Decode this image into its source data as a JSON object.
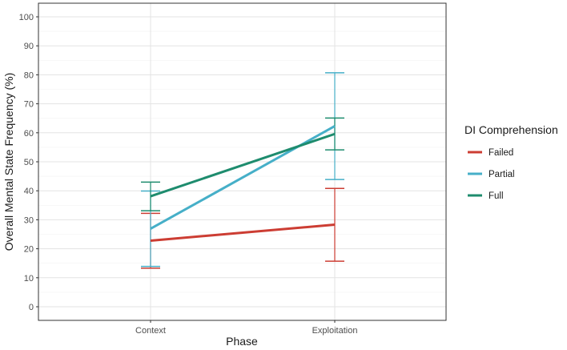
{
  "chart_data": {
    "type": "line",
    "title": "",
    "xlabel": "Phase",
    "ylabel": "Overall Mental State Frequency (%)",
    "categories": [
      "Context",
      "Exploitation"
    ],
    "ylim": [
      0,
      100
    ],
    "yticks": [
      0,
      10,
      20,
      30,
      40,
      50,
      60,
      70,
      80,
      90,
      100
    ],
    "grid": true,
    "legend": {
      "title": "DI Comprehension",
      "placement": "right"
    },
    "series": [
      {
        "name": "Failed",
        "color": "#cc3d33",
        "values": [
          22.8,
          28.3
        ],
        "err_low": [
          13.3,
          15.7
        ],
        "err_high": [
          32.2,
          40.8
        ]
      },
      {
        "name": "Partial",
        "color": "#46afc8",
        "values": [
          26.9,
          62.3
        ],
        "err_low": [
          13.9,
          43.9
        ],
        "err_high": [
          39.9,
          80.7
        ]
      },
      {
        "name": "Full",
        "color": "#1e8c6e",
        "values": [
          38.1,
          59.6
        ],
        "err_low": [
          33.1,
          54.1
        ],
        "err_high": [
          43.0,
          65.1
        ]
      }
    ]
  }
}
